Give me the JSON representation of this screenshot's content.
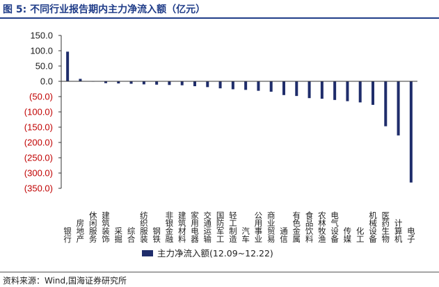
{
  "figure": {
    "title": "图 5:  不同行业报告期内主力净流入额（亿元）",
    "source": "资料来源：Wind,国海证券研究所"
  },
  "colors": {
    "bar": "#1f2d6b",
    "positive_tick": "#1a1a1a",
    "negative_tick": "#c00000",
    "title": "#1f3c88"
  },
  "chart_data": {
    "type": "bar",
    "categories": [
      "银行",
      "房地产",
      "休闲服务",
      "建筑装饰",
      "采掘",
      "综合",
      "纺织服装",
      "钢铁",
      "非银金融",
      "建筑材料",
      "家用电器",
      "交通运输",
      "国防军工",
      "轻工制造",
      "汽车",
      "公用事业",
      "商业贸易",
      "通信",
      "有色金属",
      "食品饮料",
      "农林牧渔",
      "电气设备",
      "传媒",
      "化工",
      "机械设备",
      "医药生物",
      "计算机",
      "电子"
    ],
    "series": [
      {
        "name": "主力净流入额(12.09~12.22)",
        "values": [
          97,
          8,
          1,
          -6,
          -7,
          -8,
          -10,
          -11,
          -12,
          -13,
          -16,
          -19,
          -23,
          -26,
          -28,
          -31,
          -34,
          -45,
          -48,
          -55,
          -57,
          -61,
          -65,
          -69,
          -77,
          -147,
          -177,
          -331
        ]
      }
    ],
    "ylim": [
      -350,
      150
    ],
    "yticks": [
      "150.0",
      "100.0",
      "50.0",
      "0.0",
      "(50.0)",
      "(100.0)",
      "(150.0)",
      "(200.0)",
      "(250.0)",
      "(300.0)",
      "(350.0)"
    ],
    "ytick_values": [
      150,
      100,
      50,
      0,
      -50,
      -100,
      -150,
      -200,
      -250,
      -300,
      -350
    ],
    "grid": false,
    "legend_position": "bottom-center"
  }
}
